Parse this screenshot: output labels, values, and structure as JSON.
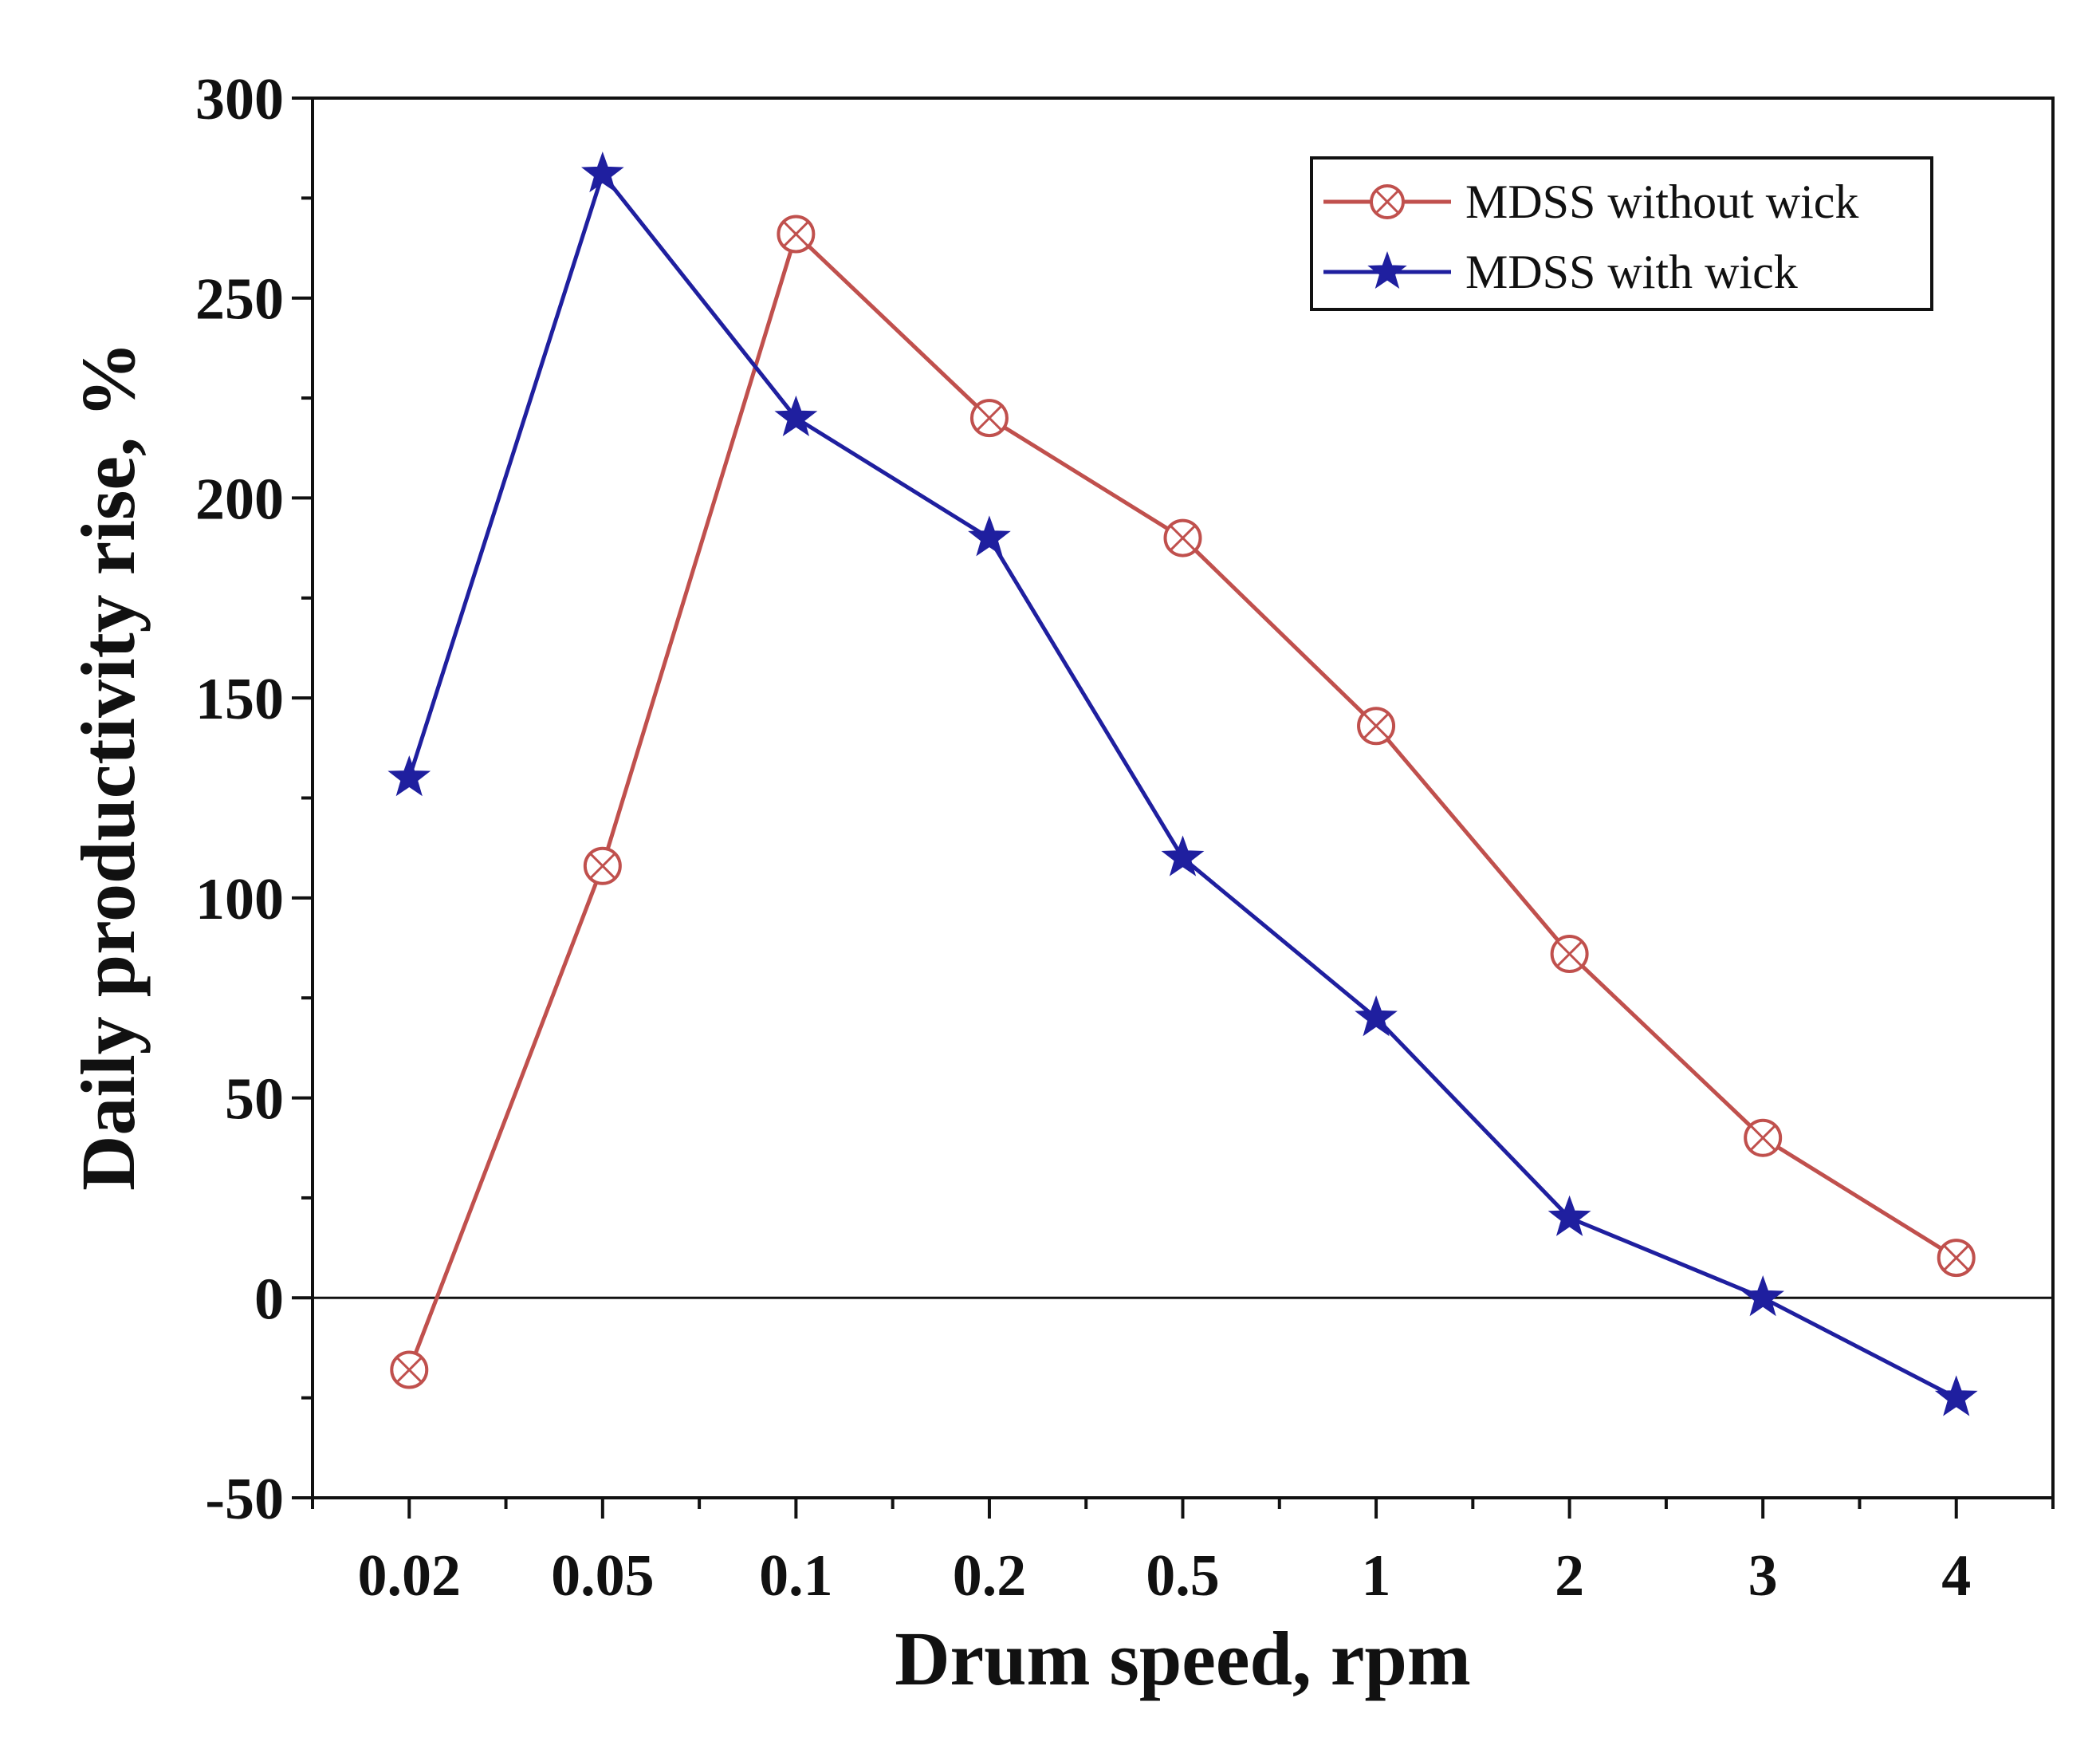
{
  "chart_data": {
    "type": "line",
    "title": "",
    "xlabel": "Drum speed, rpm",
    "ylabel": "Daily productivity rise, %",
    "categories": [
      "0.02",
      "0.05",
      "0.1",
      "0.2",
      "0.5",
      "1",
      "2",
      "3",
      "4"
    ],
    "ylim": [
      -50,
      300
    ],
    "yticks": [
      -50,
      0,
      50,
      100,
      150,
      200,
      250,
      300
    ],
    "ytick_labels": [
      "-50",
      "0",
      "50",
      "100",
      "150",
      "200",
      "250",
      "300"
    ],
    "zero_line": true,
    "grid": false,
    "legend_position": "top-right",
    "series": [
      {
        "name": "MDSS without wick",
        "values": [
          -18,
          108,
          266,
          220,
          190,
          143,
          86,
          40,
          10
        ],
        "color": "#c0504d",
        "marker": "circle-x"
      },
      {
        "name": "MDSS with wick",
        "values": [
          130,
          281,
          220,
          190,
          110,
          70,
          20,
          0,
          -25
        ],
        "color": "#1f1f9f",
        "marker": "star"
      }
    ]
  }
}
